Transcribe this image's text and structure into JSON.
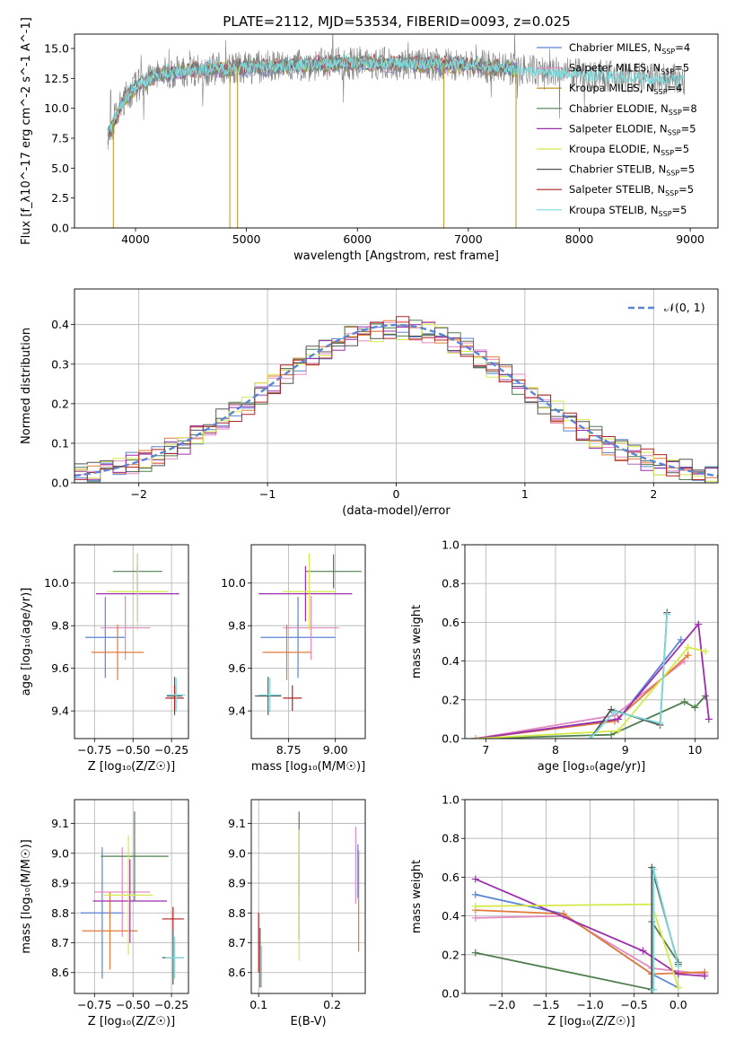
{
  "title": "PLATE=2112, MJD=53534, FIBERID=0093, z=0.025",
  "colors": {
    "chabrier_miles": "#5b84d6",
    "salpeter_miles": "#e38ac0",
    "kroupa_miles": "#b8860b",
    "chabrier_elodie": "#4f7f4f",
    "salpeter_elodie": "#9b2fae",
    "kroupa_elodie": "#d4ea4a",
    "chabrier_stelib": "#555555",
    "salpeter_stelib": "#b22222",
    "kroupa_stelib": "#7fdadc",
    "orange": "#e07b39",
    "grey": "#808080",
    "teal": "#2ca09a"
  },
  "chart_data": [
    {
      "id": "spectrum",
      "type": "line",
      "xlabel": "wavelength [Angstrom, rest frame]",
      "ylabel": "Flux [f_λ10^-17 erg cm^-2 s^-1 A^-1]",
      "xlim": [
        3450,
        9250
      ],
      "ylim": [
        0,
        16.2
      ],
      "xticks": [
        4000,
        5000,
        6000,
        7000,
        8000,
        9000
      ],
      "yticks": [
        0.0,
        2.5,
        5.0,
        7.5,
        10.0,
        12.5,
        15.0
      ],
      "xtick_labels": [
        "4000",
        "5000",
        "6000",
        "7000",
        "8000",
        "9000"
      ],
      "ytick_labels": [
        "0.0",
        "2.5",
        "5.0",
        "7.5",
        "10.0",
        "12.5",
        "15.0"
      ],
      "data_range": [
        3750,
        8950
      ],
      "continuum_anchors": [
        [
          3750,
          7.8
        ],
        [
          3900,
          10.8
        ],
        [
          4000,
          11.8
        ],
        [
          4200,
          12.8
        ],
        [
          4500,
          13.2
        ],
        [
          5000,
          13.4
        ],
        [
          6000,
          13.8
        ],
        [
          7000,
          13.6
        ],
        [
          8000,
          12.8
        ],
        [
          9000,
          12.3
        ]
      ],
      "drops": [
        [
          3800,
          0
        ],
        [
          4850,
          0
        ],
        [
          4920,
          0
        ],
        [
          6780,
          0
        ],
        [
          7430,
          0
        ]
      ],
      "legend": [
        {
          "label": "Chabrier MILES, N",
          "sub": "SSP",
          "tail": "=4",
          "color": "#5b84d6"
        },
        {
          "label": "Salpeter MILES, N",
          "sub": "SSP",
          "tail": "=5",
          "color": "#e38ac0"
        },
        {
          "label": "Kroupa MILES, N",
          "sub": "SSP",
          "tail": "=4",
          "color": "#b8860b"
        },
        {
          "label": "Chabrier ELODIE, N",
          "sub": "SSP",
          "tail": "=8",
          "color": "#4f7f4f"
        },
        {
          "label": "Salpeter ELODIE, N",
          "sub": "SSP",
          "tail": "=5",
          "color": "#9b2fae"
        },
        {
          "label": "Kroupa ELODIE, N",
          "sub": "SSP",
          "tail": "=5",
          "color": "#d4ea4a"
        },
        {
          "label": "Chabrier STELIB, N",
          "sub": "SSP",
          "tail": "=5",
          "color": "#555555"
        },
        {
          "label": "Salpeter STELIB, N",
          "sub": "SSP",
          "tail": "=5",
          "color": "#b22222"
        },
        {
          "label": "Kroupa STELIB, N",
          "sub": "SSP",
          "tail": "=5",
          "color": "#7fdadc"
        }
      ]
    },
    {
      "id": "residuals",
      "type": "histogram",
      "xlabel": "(data-model)/error",
      "ylabel": "Normed distribution",
      "xlim": [
        -2.5,
        2.5
      ],
      "ylim": [
        0,
        0.49
      ],
      "xticks": [
        -2,
        -1,
        0,
        1,
        2
      ],
      "yticks": [
        0.0,
        0.1,
        0.2,
        0.3,
        0.4
      ],
      "xtick_labels": [
        "−2",
        "−1",
        "0",
        "1",
        "2"
      ],
      "ytick_labels": [
        "0.0",
        "0.1",
        "0.2",
        "0.3",
        "0.4"
      ],
      "bin_width": 0.1,
      "gaussian_label": "𝒩(0, 1)",
      "gaussian_color": "#5b84d6",
      "series_colors": [
        "#5b84d6",
        "#e38ac0",
        "#e07b39",
        "#4f7f4f",
        "#9b2fae",
        "#d4ea4a",
        "#555555",
        "#b22222"
      ]
    },
    {
      "id": "age-vs-Z",
      "type": "errorbar",
      "xlabel": "Z [log₁₀(Z/Z☉)]",
      "ylabel": "age  [log₁₀(age/yr)]",
      "xlim": [
        -0.88,
        -0.14
      ],
      "ylim": [
        9.27,
        10.18
      ],
      "xticks": [
        -0.75,
        -0.5,
        -0.25
      ],
      "yticks": [
        9.4,
        9.6,
        9.8,
        10.0
      ],
      "xtick_labels": [
        "−0.75",
        "−0.50",
        "−0.25"
      ],
      "ytick_labels": [
        "9.4",
        "9.6",
        "9.8",
        "10.0"
      ],
      "points": [
        {
          "x": -0.68,
          "y": 9.745,
          "xerr": 0.13,
          "yerr": 0.19,
          "color": "#5b84d6"
        },
        {
          "x": -0.55,
          "y": 9.79,
          "xerr": 0.16,
          "yerr": 0.15,
          "color": "#e38ac0"
        },
        {
          "x": -0.6,
          "y": 9.675,
          "xerr": 0.17,
          "yerr": 0.13,
          "color": "#e07b39"
        },
        {
          "x": -0.47,
          "y": 10.055,
          "xerr": 0.16,
          "yerr": 0.08,
          "color": "#4f7f4f"
        },
        {
          "x": -0.47,
          "y": 9.95,
          "xerr": 0.27,
          "yerr": 0.13,
          "color": "#9b2fae"
        },
        {
          "x": -0.47,
          "y": 9.96,
          "xerr": 0.2,
          "yerr": 0.18,
          "color": "#d4ea4a"
        },
        {
          "x": -0.23,
          "y": 9.47,
          "xerr": 0.05,
          "yerr": 0.09,
          "color": "#555555"
        },
        {
          "x": -0.23,
          "y": 9.46,
          "xerr": 0.06,
          "yerr": 0.06,
          "color": "#b22222"
        },
        {
          "x": -0.22,
          "y": 9.475,
          "xerr": 0.06,
          "yerr": 0.08,
          "color": "#7fdadc"
        }
      ]
    },
    {
      "id": "age-vs-mass",
      "type": "errorbar",
      "xlabel": "mass [log₁₀(M/M☉)]",
      "ylabel": "",
      "xlim": [
        8.55,
        9.16
      ],
      "ylim": [
        9.27,
        10.18
      ],
      "xticks": [
        8.75,
        9.0
      ],
      "yticks": [
        9.4,
        9.6,
        9.8,
        10.0
      ],
      "xtick_labels": [
        "8.75",
        "9.00"
      ],
      "ytick_labels": [
        "9.4",
        "9.6",
        "9.8",
        "10.0"
      ],
      "points": [
        {
          "x": 8.8,
          "y": 9.745,
          "xerr": 0.2,
          "yerr": 0.19,
          "color": "#5b84d6"
        },
        {
          "x": 8.87,
          "y": 9.79,
          "xerr": 0.15,
          "yerr": 0.15,
          "color": "#e38ac0"
        },
        {
          "x": 8.74,
          "y": 9.675,
          "xerr": 0.13,
          "yerr": 0.13,
          "color": "#e07b39"
        },
        {
          "x": 8.99,
          "y": 10.055,
          "xerr": 0.15,
          "yerr": 0.08,
          "color": "#4f7f4f"
        },
        {
          "x": 8.84,
          "y": 9.95,
          "xerr": 0.25,
          "yerr": 0.13,
          "color": "#9b2fae"
        },
        {
          "x": 8.86,
          "y": 9.96,
          "xerr": 0.14,
          "yerr": 0.18,
          "color": "#d4ea4a"
        },
        {
          "x": 8.64,
          "y": 9.47,
          "xerr": 0.07,
          "yerr": 0.09,
          "color": "#555555"
        },
        {
          "x": 8.77,
          "y": 9.46,
          "xerr": 0.05,
          "yerr": 0.06,
          "color": "#b22222"
        },
        {
          "x": 8.65,
          "y": 9.475,
          "xerr": 0.06,
          "yerr": 0.08,
          "color": "#7fdadc"
        }
      ]
    },
    {
      "id": "weight-vs-age",
      "type": "line",
      "xlabel": "age  [log₁₀(age/yr)]",
      "ylabel": "mass weight",
      "xlim": [
        6.7,
        10.33
      ],
      "ylim": [
        0,
        1
      ],
      "xticks": [
        7,
        8,
        9,
        10
      ],
      "yticks": [
        0.0,
        0.2,
        0.4,
        0.6,
        0.8,
        1.0
      ],
      "xtick_labels": [
        "7",
        "8",
        "9",
        "10"
      ],
      "ytick_labels": [
        "0.0",
        "0.2",
        "0.4",
        "0.6",
        "0.8",
        "1.0"
      ],
      "series": [
        {
          "color": "#5b84d6",
          "x": [
            6.85,
            8.9,
            9.8
          ],
          "y": [
            0.0,
            0.1,
            0.51
          ]
        },
        {
          "color": "#e38ac0",
          "x": [
            6.85,
            8.85,
            9.85
          ],
          "y": [
            0.0,
            0.12,
            0.4
          ]
        },
        {
          "color": "#e07b39",
          "x": [
            6.85,
            8.85,
            9.9
          ],
          "y": [
            0.0,
            0.09,
            0.43
          ]
        },
        {
          "color": "#4f7f4f",
          "x": [
            6.85,
            8.8,
            9.85,
            10.0,
            10.15
          ],
          "y": [
            0.0,
            0.02,
            0.19,
            0.16,
            0.22
          ]
        },
        {
          "color": "#9b2fae",
          "x": [
            6.85,
            8.9,
            10.05,
            10.2
          ],
          "y": [
            0.0,
            0.1,
            0.59,
            0.1
          ]
        },
        {
          "color": "#d4ea4a",
          "x": [
            6.85,
            8.9,
            9.9,
            10.15
          ],
          "y": [
            0.0,
            0.04,
            0.47,
            0.45
          ]
        },
        {
          "color": "#555555",
          "x": [
            8.5,
            8.8,
            9.5,
            9.6
          ],
          "y": [
            0.0,
            0.15,
            0.07,
            0.65
          ]
        },
        {
          "color": "#7fdadc",
          "x": [
            8.5,
            8.85,
            9.5,
            9.6
          ],
          "y": [
            0.0,
            0.14,
            0.08,
            0.64
          ]
        }
      ]
    },
    {
      "id": "mass-vs-Z",
      "type": "errorbar",
      "xlabel": "Z [log₁₀(Z/Z☉)]",
      "ylabel": "mass [log₁₀(M/M☉)]",
      "xlim": [
        -0.88,
        -0.14
      ],
      "ylim": [
        8.53,
        9.18
      ],
      "xticks": [
        -0.75,
        -0.5,
        -0.25
      ],
      "yticks": [
        8.6,
        8.7,
        8.8,
        8.9,
        9.0,
        9.1
      ],
      "xtick_labels": [
        "−0.75",
        "−0.50",
        "−0.25"
      ],
      "ytick_labels": [
        "8.6",
        "8.7",
        "8.8",
        "8.9",
        "9.0",
        "9.1"
      ],
      "points": [
        {
          "x": -0.7,
          "y": 8.8,
          "xerr": 0.14,
          "yerr": 0.22,
          "color": "#5b84d6"
        },
        {
          "x": -0.57,
          "y": 8.87,
          "xerr": 0.18,
          "yerr": 0.15,
          "color": "#e38ac0"
        },
        {
          "x": -0.65,
          "y": 8.74,
          "xerr": 0.18,
          "yerr": 0.13,
          "color": "#e07b39"
        },
        {
          "x": -0.49,
          "y": 8.99,
          "xerr": 0.22,
          "yerr": 0.15,
          "color": "#4f7f4f"
        },
        {
          "x": -0.52,
          "y": 8.84,
          "xerr": 0.24,
          "yerr": 0.14,
          "color": "#9b2fae"
        },
        {
          "x": -0.53,
          "y": 8.86,
          "xerr": 0.16,
          "yerr": 0.2,
          "color": "#d4ea4a"
        },
        {
          "x": -0.24,
          "y": 8.65,
          "xerr": 0.07,
          "yerr": 0.09,
          "color": "#555555"
        },
        {
          "x": -0.24,
          "y": 8.78,
          "xerr": 0.07,
          "yerr": 0.04,
          "color": "#b22222"
        },
        {
          "x": -0.23,
          "y": 8.65,
          "xerr": 0.06,
          "yerr": 0.07,
          "color": "#7fdadc"
        }
      ]
    },
    {
      "id": "mass-vs-EBV",
      "type": "errorbar",
      "xlabel": "E(B-V)",
      "ylabel": "",
      "xlim": [
        0.09,
        0.245
      ],
      "ylim": [
        8.53,
        9.18
      ],
      "xticks": [
        0.1,
        0.2
      ],
      "yticks": [
        8.6,
        8.7,
        8.8,
        8.9,
        9.0,
        9.1
      ],
      "xtick_labels": [
        "0.1",
        "0.2"
      ],
      "ytick_labels": [
        "8.6",
        "8.7",
        "8.8",
        "8.9",
        "9.0",
        "9.1"
      ],
      "points": [
        {
          "x": 0.235,
          "y": 8.94,
          "xerr": 0,
          "yerr": 0.09,
          "color": "#5b84d6"
        },
        {
          "x": 0.232,
          "y": 8.96,
          "xerr": 0,
          "yerr": 0.13,
          "color": "#e38ac0"
        },
        {
          "x": 0.236,
          "y": 8.84,
          "xerr": 0,
          "yerr": 0.17,
          "color": "#e07b39"
        },
        {
          "x": 0.155,
          "y": 9.0,
          "xerr": 0,
          "yerr": 0.14,
          "color": "#4f7f4f"
        },
        {
          "x": 0.155,
          "y": 8.85,
          "xerr": 0,
          "yerr": 0.14,
          "color": "#9b2fae"
        },
        {
          "x": 0.155,
          "y": 8.86,
          "xerr": 0,
          "yerr": 0.22,
          "color": "#d4ea4a"
        },
        {
          "x": 0.102,
          "y": 8.65,
          "xerr": 0,
          "yerr": 0.1,
          "color": "#555555"
        },
        {
          "x": 0.1,
          "y": 8.7,
          "xerr": 0,
          "yerr": 0.1,
          "color": "#b22222"
        },
        {
          "x": 0.104,
          "y": 8.62,
          "xerr": 0,
          "yerr": 0.07,
          "color": "#7fdadc"
        }
      ]
    },
    {
      "id": "weight-vs-Z",
      "type": "line",
      "xlabel": "Z [log₁₀(Z/Z☉)]",
      "ylabel": "mass weight",
      "xlim": [
        -2.42,
        0.45
      ],
      "ylim": [
        0,
        1
      ],
      "xticks": [
        -2.0,
        -1.5,
        -1.0,
        -0.5,
        0.0
      ],
      "yticks": [
        0.0,
        0.2,
        0.4,
        0.6,
        0.8,
        1.0
      ],
      "xtick_labels": [
        "−2.0",
        "−1.5",
        "−1.0",
        "−0.5",
        "0.0"
      ],
      "ytick_labels": [
        "0.0",
        "0.2",
        "0.4",
        "0.6",
        "0.8",
        "1.0"
      ],
      "series": [
        {
          "color": "#5b84d6",
          "x": [
            -2.3,
            -1.3,
            -0.3,
            0.0
          ],
          "y": [
            0.51,
            0.41,
            0.1,
            0.03
          ]
        },
        {
          "color": "#e38ac0",
          "x": [
            -2.3,
            -1.3,
            -0.3,
            0.3
          ],
          "y": [
            0.39,
            0.4,
            0.13,
            0.1
          ]
        },
        {
          "color": "#e07b39",
          "x": [
            -2.3,
            -1.3,
            -0.3,
            0.3
          ],
          "y": [
            0.43,
            0.41,
            0.1,
            0.11
          ]
        },
        {
          "color": "#4f7f4f",
          "x": [
            -2.3,
            -0.3,
            -0.3,
            0.0
          ],
          "y": [
            0.21,
            0.02,
            0.37,
            0.16
          ]
        },
        {
          "color": "#9b2fae",
          "x": [
            -2.3,
            -0.4,
            0.0,
            0.3
          ],
          "y": [
            0.59,
            0.22,
            0.1,
            0.09
          ]
        },
        {
          "color": "#d4ea4a",
          "x": [
            -2.3,
            -0.3,
            0.0
          ],
          "y": [
            0.45,
            0.46,
            0.03
          ]
        },
        {
          "color": "#555555",
          "x": [
            -0.3,
            -0.3,
            0.0
          ],
          "y": [
            0.02,
            0.65,
            0.15
          ]
        },
        {
          "color": "#7fdadc",
          "x": [
            -0.28,
            -0.28,
            0.0
          ],
          "y": [
            0.02,
            0.64,
            0.14
          ]
        }
      ]
    }
  ]
}
